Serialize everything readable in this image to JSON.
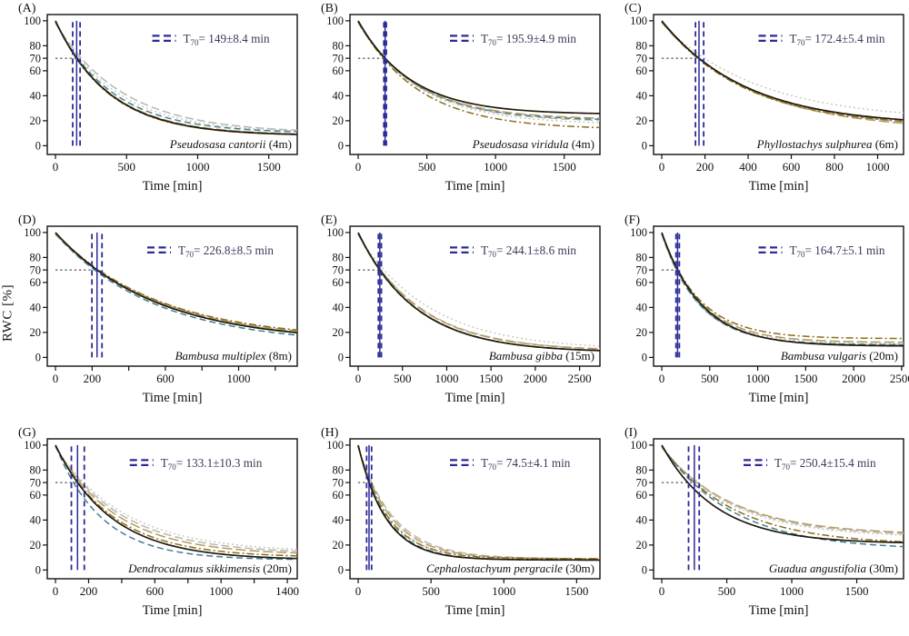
{
  "figure": {
    "y_axis_label": "RWC [%]",
    "x_axis_label": "Time [min]",
    "t70_prefix": "T",
    "t70_subscript": "70",
    "t70_unit": "min",
    "colors": {
      "marker_navy": "#2b2b96",
      "t70_text": "#3a3a5c",
      "axis_black": "#111111",
      "guide_dotted": "#222222"
    },
    "line_styles": {
      "solid-black": {
        "color": "#201a0c",
        "dash": "",
        "width": 1.7
      },
      "dashdot-olive": {
        "color": "#8a6d1e",
        "dash": "8 3 2 3",
        "width": 1.5
      },
      "longdash-tan": {
        "color": "#b49a5c",
        "dash": "11 4",
        "width": 1.5
      },
      "dash-teal": {
        "color": "#407f94",
        "dash": "7 4",
        "width": 1.5
      },
      "dash-gray": {
        "color": "#b7b7ae",
        "dash": "9 4",
        "width": 1.5
      },
      "dot-gray": {
        "color": "#c6c6bc",
        "dash": "2 3",
        "width": 1.4
      }
    }
  },
  "chart_data": [
    {
      "type": "line",
      "panel": "A",
      "species": "Pseudosasa cantorii",
      "height_label": "(4m)",
      "t70_min": 149,
      "t70_err": 8.4,
      "t70_display": "149±8.4",
      "t70_range_lines": [
        121,
        173
      ],
      "x_end": 1700,
      "x_ticks": [
        0,
        500,
        1000,
        1500
      ],
      "x_tick_labels": [
        "0",
        "500",
        "1000",
        "1500"
      ],
      "y_ticks": [
        0,
        20,
        40,
        60,
        70,
        80,
        100
      ],
      "y_guide": 70,
      "legend_fx": 0.42,
      "series": [
        {
          "style": "dash-gray",
          "t70_factor": 1.22,
          "asymptote": 10
        },
        {
          "style": "dot-gray",
          "t70_factor": 1.13,
          "asymptote": 10
        },
        {
          "style": "dash-teal",
          "t70_factor": 1.05,
          "asymptote": 10
        },
        {
          "style": "longdash-tan",
          "t70_factor": 1.0,
          "asymptote": 8.5
        },
        {
          "style": "dashdot-olive",
          "t70_factor": 0.98,
          "asymptote": 8
        },
        {
          "style": "solid-black",
          "t70_factor": 1.0,
          "asymptote": 8
        }
      ]
    },
    {
      "type": "line",
      "panel": "B",
      "species": "Pseudosasa viridula",
      "height_label": "(4m)",
      "t70_min": 195.9,
      "t70_err": 4.9,
      "t70_display": "195.9±4.9",
      "t70_range_lines": [
        187,
        205
      ],
      "x_end": 1760,
      "x_ticks": [
        0,
        500,
        1000,
        1500
      ],
      "x_tick_labels": [
        "0",
        "500",
        "1000",
        "1500"
      ],
      "y_ticks": [
        0,
        20,
        40,
        60,
        70,
        80,
        100
      ],
      "y_guide": 70,
      "legend_fx": 0.4,
      "series": [
        {
          "style": "dot-gray",
          "t70_factor": 0.95,
          "asymptote": 17
        },
        {
          "style": "dash-gray",
          "t70_factor": 0.97,
          "asymptote": 19
        },
        {
          "style": "dash-teal",
          "t70_factor": 0.98,
          "asymptote": 20
        },
        {
          "style": "longdash-tan",
          "t70_factor": 0.99,
          "asymptote": 21
        },
        {
          "style": "dashdot-olive",
          "t70_factor": 0.93,
          "asymptote": 13
        },
        {
          "style": "solid-black",
          "t70_factor": 1.0,
          "asymptote": 25
        }
      ]
    },
    {
      "type": "line",
      "panel": "C",
      "species": "Phyllostachys sulphurea",
      "height_label": "(6m)",
      "t70_min": 172.4,
      "t70_err": 5.4,
      "t70_display": "172.4±5.4",
      "t70_range_lines": [
        156,
        194
      ],
      "x_end": 1120,
      "x_ticks": [
        0,
        200,
        400,
        600,
        800,
        1000
      ],
      "x_tick_labels": [
        "0",
        "200",
        "400",
        "600",
        "800",
        "1000"
      ],
      "y_ticks": [
        0,
        20,
        40,
        60,
        70,
        80,
        100
      ],
      "y_guide": 70,
      "legend_fx": 0.42,
      "series": [
        {
          "style": "dot-gray",
          "t70_factor": 1.15,
          "asymptote": 20
        },
        {
          "style": "dash-gray",
          "t70_factor": 1.0,
          "asymptote": 13
        },
        {
          "style": "longdash-tan",
          "t70_factor": 0.98,
          "asymptote": 12
        },
        {
          "style": "dash-teal",
          "t70_factor": 0.99,
          "asymptote": 16
        },
        {
          "style": "dashdot-olive",
          "t70_factor": 0.96,
          "asymptote": 15
        },
        {
          "style": "solid-black",
          "t70_factor": 1.0,
          "asymptote": 16
        }
      ]
    },
    {
      "type": "line",
      "panel": "D",
      "species": "Bambusa multiplex",
      "height_label": "(8m)",
      "t70_min": 226.8,
      "t70_err": 8.5,
      "t70_display": "226.8±8.5",
      "t70_range_lines": [
        199,
        254
      ],
      "x_end": 1320,
      "x_ticks": [
        0,
        200,
        400,
        600,
        800,
        1000,
        1200
      ],
      "x_tick_labels": [
        "0",
        "200",
        "",
        "600",
        "",
        "1000",
        ""
      ],
      "y_ticks": [
        0,
        20,
        40,
        60,
        70,
        80,
        100
      ],
      "y_guide": 70,
      "legend_fx": 0.4,
      "series": [
        {
          "style": "dot-gray",
          "t70_factor": 0.97,
          "asymptote": 11
        },
        {
          "style": "dash-gray",
          "t70_factor": 1.0,
          "asymptote": 12
        },
        {
          "style": "dash-teal",
          "t70_factor": 0.94,
          "asymptote": 10
        },
        {
          "style": "longdash-tan",
          "t70_factor": 1.02,
          "asymptote": 13
        },
        {
          "style": "dashdot-olive",
          "t70_factor": 1.04,
          "asymptote": 14
        },
        {
          "style": "solid-black",
          "t70_factor": 1.0,
          "asymptote": 12
        }
      ]
    },
    {
      "type": "line",
      "panel": "E",
      "species": "Bambusa gibba",
      "height_label": "(15m)",
      "t70_min": 244.1,
      "t70_err": 8.6,
      "t70_display": "244.1±8.6",
      "t70_range_lines": [
        228,
        262
      ],
      "x_end": 2730,
      "x_ticks": [
        0,
        500,
        1000,
        1500,
        2000,
        2500
      ],
      "x_tick_labels": [
        "0",
        "500",
        "1000",
        "1500",
        "2000",
        "2500"
      ],
      "y_ticks": [
        0,
        20,
        40,
        60,
        70,
        80,
        100
      ],
      "y_guide": 70,
      "legend_fx": 0.4,
      "series": [
        {
          "style": "dot-gray",
          "t70_factor": 1.2,
          "asymptote": 6
        },
        {
          "style": "dash-gray",
          "t70_factor": 1.05,
          "asymptote": 5
        },
        {
          "style": "longdash-tan",
          "t70_factor": 1.04,
          "asymptote": 5
        },
        {
          "style": "dash-teal",
          "t70_factor": 0.98,
          "asymptote": 4
        },
        {
          "style": "dashdot-olive",
          "t70_factor": 1.0,
          "asymptote": 4
        },
        {
          "style": "solid-black",
          "t70_factor": 1.0,
          "asymptote": 4
        }
      ]
    },
    {
      "type": "line",
      "panel": "F",
      "species": "Bambusa vulgaris",
      "height_label": "(20m)",
      "t70_min": 164.7,
      "t70_err": 5.1,
      "t70_display": "164.7±5.1",
      "t70_range_lines": [
        148,
        183
      ],
      "x_end": 2520,
      "x_ticks": [
        0,
        500,
        1000,
        1500,
        2000,
        2500
      ],
      "x_tick_labels": [
        "0",
        "500",
        "1000",
        "1500",
        "2000",
        "2500"
      ],
      "y_ticks": [
        0,
        20,
        40,
        60,
        70,
        80,
        100
      ],
      "y_guide": 70,
      "legend_fx": 0.42,
      "series": [
        {
          "style": "dot-gray",
          "t70_factor": 0.95,
          "asymptote": 11
        },
        {
          "style": "dash-gray",
          "t70_factor": 0.92,
          "asymptote": 10
        },
        {
          "style": "dash-teal",
          "t70_factor": 0.93,
          "asymptote": 10
        },
        {
          "style": "longdash-tan",
          "t70_factor": 1.0,
          "asymptote": 12
        },
        {
          "style": "dashdot-olive",
          "t70_factor": 1.03,
          "asymptote": 15
        },
        {
          "style": "solid-black",
          "t70_factor": 1.0,
          "asymptote": 9
        }
      ]
    },
    {
      "type": "line",
      "panel": "G",
      "species": "Dendrocalamus sikkimensis",
      "height_label": "(20m)",
      "t70_min": 133.1,
      "t70_err": 10.3,
      "t70_display": "133.1±10.3",
      "t70_range_lines": [
        96,
        174
      ],
      "x_end": 1460,
      "x_ticks": [
        0,
        200,
        400,
        600,
        800,
        1000,
        1200,
        1400
      ],
      "x_tick_labels": [
        "0",
        "200",
        "",
        "600",
        "",
        "1000",
        "",
        "1400"
      ],
      "y_ticks": [
        0,
        20,
        40,
        60,
        70,
        80,
        100
      ],
      "y_guide": 70,
      "legend_fx": 0.33,
      "series": [
        {
          "style": "dot-gray",
          "t70_factor": 1.28,
          "asymptote": 14
        },
        {
          "style": "dash-gray",
          "t70_factor": 1.2,
          "asymptote": 13
        },
        {
          "style": "longdash-tan",
          "t70_factor": 1.12,
          "asymptote": 12
        },
        {
          "style": "dashdot-olive",
          "t70_factor": 1.03,
          "asymptote": 10
        },
        {
          "style": "dash-teal",
          "t70_factor": 0.82,
          "asymptote": 8
        },
        {
          "style": "solid-black",
          "t70_factor": 1.0,
          "asymptote": 8
        }
      ]
    },
    {
      "type": "line",
      "panel": "H",
      "species": "Cephalostachyum pergracile",
      "height_label": "(30m)",
      "t70_min": 74.5,
      "t70_err": 4.1,
      "t70_display": "74.5±4.1",
      "t70_range_lines": [
        58,
        92
      ],
      "x_end": 1660,
      "x_ticks": [
        0,
        500,
        1000,
        1500
      ],
      "x_tick_labels": [
        "0",
        "500",
        "1000",
        "1500"
      ],
      "y_ticks": [
        0,
        20,
        40,
        60,
        70,
        80,
        100
      ],
      "y_guide": 70,
      "legend_fx": 0.4,
      "series": [
        {
          "style": "dash-gray",
          "t70_factor": 1.25,
          "asymptote": 9
        },
        {
          "style": "longdash-tan",
          "t70_factor": 1.18,
          "asymptote": 9
        },
        {
          "style": "dot-gray",
          "t70_factor": 1.12,
          "asymptote": 8
        },
        {
          "style": "dashdot-olive",
          "t70_factor": 1.08,
          "asymptote": 9
        },
        {
          "style": "dash-teal",
          "t70_factor": 1.03,
          "asymptote": 8
        },
        {
          "style": "solid-black",
          "t70_factor": 1.0,
          "asymptote": 8
        }
      ]
    },
    {
      "type": "line",
      "panel": "I",
      "species": "Guadua angustifolia",
      "height_label": "(30m)",
      "t70_min": 250.4,
      "t70_err": 15.4,
      "t70_display": "250.4±15.4",
      "t70_range_lines": [
        206,
        288
      ],
      "x_end": 1860,
      "x_ticks": [
        0,
        500,
        1000,
        1500
      ],
      "x_tick_labels": [
        "0",
        "500",
        "1000",
        "1500"
      ],
      "y_ticks": [
        0,
        20,
        40,
        60,
        70,
        80,
        100
      ],
      "y_guide": 70,
      "legend_fx": 0.36,
      "series": [
        {
          "style": "longdash-tan",
          "t70_factor": 1.1,
          "asymptote": 28
        },
        {
          "style": "dash-gray",
          "t70_factor": 1.08,
          "asymptote": 27
        },
        {
          "style": "dot-gray",
          "t70_factor": 1.05,
          "asymptote": 26
        },
        {
          "style": "dashdot-olive",
          "t70_factor": 1.0,
          "asymptote": 20
        },
        {
          "style": "dash-teal",
          "t70_factor": 0.95,
          "asymptote": 16
        },
        {
          "style": "solid-black",
          "t70_factor": 0.8,
          "asymptote": 21
        }
      ]
    }
  ]
}
